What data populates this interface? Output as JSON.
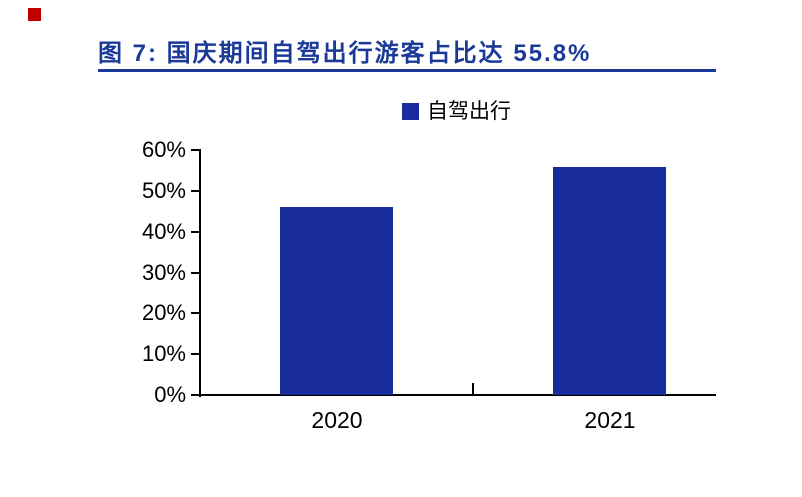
{
  "figure": {
    "title": "图 7:  国庆期间自驾出行游客占比达 55.8%",
    "title_color": "#1b3a97",
    "rule_color": "#1b3a97",
    "corner_mark_color": "#c00000"
  },
  "chart_data": {
    "type": "bar",
    "categories": [
      "2020",
      "2021"
    ],
    "series": [
      {
        "name": "自驾出行",
        "values": [
          46,
          55.8
        ]
      }
    ],
    "title": "图 7: 国庆期间自驾出行游客占比达 55.8%",
    "xlabel": "",
    "ylabel": "",
    "ylim": [
      0,
      60
    ],
    "ytick_step": 10,
    "ytick_labels": [
      "0%",
      "10%",
      "20%",
      "30%",
      "40%",
      "50%",
      "60%"
    ],
    "grid": false,
    "legend_position": "top",
    "bar_color": "#182c9b",
    "axis_color": "#000000"
  }
}
